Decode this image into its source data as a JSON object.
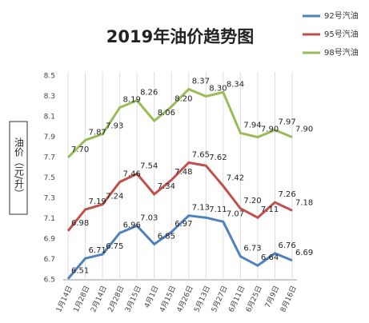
{
  "chart_data": {
    "type": "line",
    "title": "2019年油价趋势图",
    "y_label": "油价（元/升）",
    "categories": [
      "1月14日",
      "1月28日",
      "2月14日",
      "2月28日",
      "3月15日",
      "4月1日",
      "4月15日",
      "4月26日",
      "5月13日",
      "5月27日",
      "6月11日",
      "6月25日",
      "7月9日",
      "8月16日"
    ],
    "series": [
      {
        "name": "92号汽油",
        "color": "#4f81bd",
        "values": [
          6.51,
          6.71,
          6.75,
          6.96,
          7.03,
          6.85,
          6.97,
          7.13,
          7.11,
          7.07,
          6.73,
          6.64,
          6.76,
          6.69
        ],
        "value_labels": [
          "6.51",
          "6.71",
          "6.75",
          "6.96",
          "7.03",
          "6.85",
          "6.97",
          "7.13",
          "7.11",
          "7.07",
          "6.73",
          "6.64",
          "6.76",
          "6.69"
        ]
      },
      {
        "name": "95号汽油",
        "color": "#c0504d",
        "values": [
          6.98,
          7.19,
          7.24,
          7.46,
          7.54,
          7.34,
          7.48,
          7.65,
          7.62,
          7.42,
          7.2,
          7.11,
          7.26,
          7.18
        ],
        "value_labels": [
          "6.98",
          "7.19",
          "7.24",
          "7.46",
          "7.54",
          "7.34",
          "7.48",
          "7.65",
          "7.62",
          "7.42",
          "7.20",
          "7.11",
          "7.26",
          "7.18"
        ]
      },
      {
        "name": "98号汽油",
        "color": "#9bbb59",
        "values": [
          7.7,
          7.87,
          7.93,
          8.19,
          8.26,
          8.06,
          8.2,
          8.37,
          8.3,
          8.34,
          7.94,
          7.9,
          7.97,
          7.9
        ],
        "value_labels": [
          "7.70",
          "7.87",
          "7.93",
          "8.19",
          "8.26",
          "8.06",
          "8.20",
          "8.37",
          "8.30",
          "8.34",
          "7.94",
          "7.90",
          "7.97",
          "7.90"
        ]
      }
    ],
    "ylim": [
      6.5,
      8.5
    ],
    "yticks": [
      6.5,
      6.7,
      6.9,
      7.1,
      7.3,
      7.5,
      7.7,
      7.9,
      8.1,
      8.3,
      8.5
    ],
    "grid": true,
    "legend": "top-right"
  }
}
